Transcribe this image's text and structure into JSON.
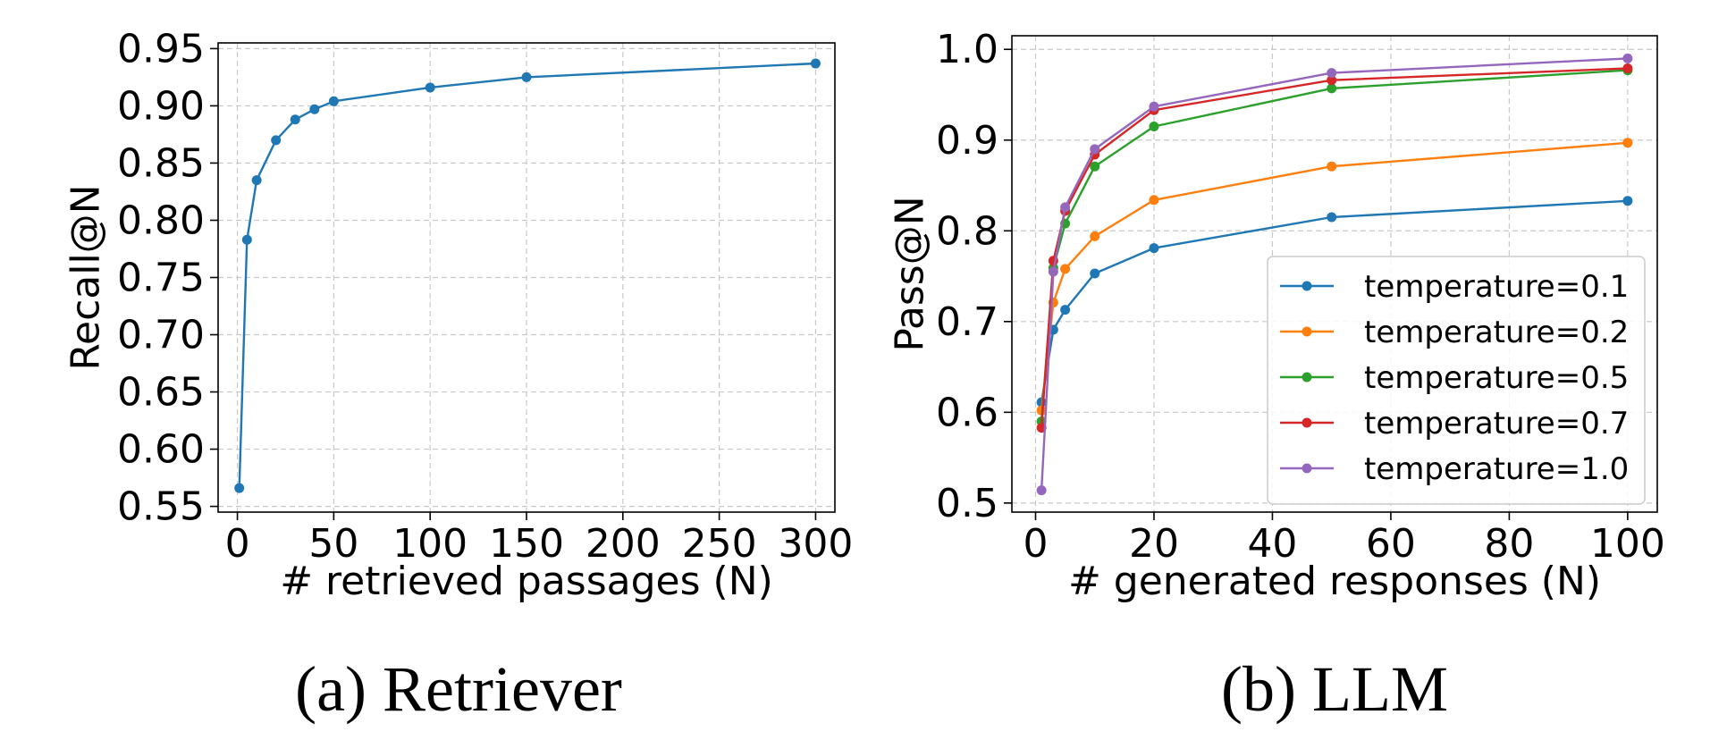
{
  "chart_data": [
    {
      "type": "line",
      "caption": "(a) Retriever",
      "xlabel": "# retrieved passages (N)",
      "ylabel": "Recall@N",
      "xlim": [
        -10,
        310
      ],
      "ylim": [
        0.545,
        0.955
      ],
      "xticks": [
        0,
        50,
        100,
        150,
        200,
        250,
        300
      ],
      "yticks": [
        "0.55",
        "0.60",
        "0.65",
        "0.70",
        "0.75",
        "0.80",
        "0.85",
        "0.90",
        "0.95"
      ],
      "grid": true,
      "legend": null,
      "series": [
        {
          "color": "#1f77b4",
          "x": [
            1,
            5,
            10,
            20,
            30,
            40,
            50,
            100,
            150,
            300
          ],
          "values": [
            0.566,
            0.783,
            0.835,
            0.87,
            0.888,
            0.897,
            0.904,
            0.916,
            0.925,
            0.937
          ]
        }
      ]
    },
    {
      "type": "line",
      "caption": "(b) LLM",
      "xlabel": "# generated responses (N)",
      "ylabel": "Pass@N",
      "xlim": [
        -4,
        105
      ],
      "ylim": [
        0.49,
        1.015
      ],
      "xticks": [
        0,
        20,
        40,
        60,
        80,
        100
      ],
      "yticks": [
        "0.5",
        "0.6",
        "0.7",
        "0.8",
        "0.9",
        "1.0"
      ],
      "grid": true,
      "legend": "lower-right",
      "series": [
        {
          "name": "temperature=0.1",
          "color": "#1f77b4",
          "x": [
            1,
            3,
            5,
            10,
            20,
            50,
            100
          ],
          "values": [
            0.611,
            0.691,
            0.713,
            0.753,
            0.781,
            0.815,
            0.833
          ]
        },
        {
          "name": "temperature=0.2",
          "color": "#ff7f0e",
          "x": [
            1,
            3,
            5,
            10,
            20,
            50,
            100
          ],
          "values": [
            0.602,
            0.721,
            0.758,
            0.794,
            0.834,
            0.871,
            0.897
          ]
        },
        {
          "name": "temperature=0.5",
          "color": "#2ca02c",
          "x": [
            1,
            3,
            5,
            10,
            20,
            50,
            100
          ],
          "values": [
            0.59,
            0.759,
            0.808,
            0.871,
            0.915,
            0.957,
            0.977
          ]
        },
        {
          "name": "temperature=0.7",
          "color": "#d62728",
          "x": [
            1,
            3,
            5,
            10,
            20,
            50,
            100
          ],
          "values": [
            0.583,
            0.767,
            0.822,
            0.884,
            0.933,
            0.966,
            0.979
          ]
        },
        {
          "name": "temperature=1.0",
          "color": "#9467bd",
          "x": [
            1,
            3,
            5,
            10,
            20,
            50,
            100
          ],
          "values": [
            0.514,
            0.755,
            0.826,
            0.89,
            0.937,
            0.974,
            0.99
          ]
        }
      ]
    }
  ]
}
